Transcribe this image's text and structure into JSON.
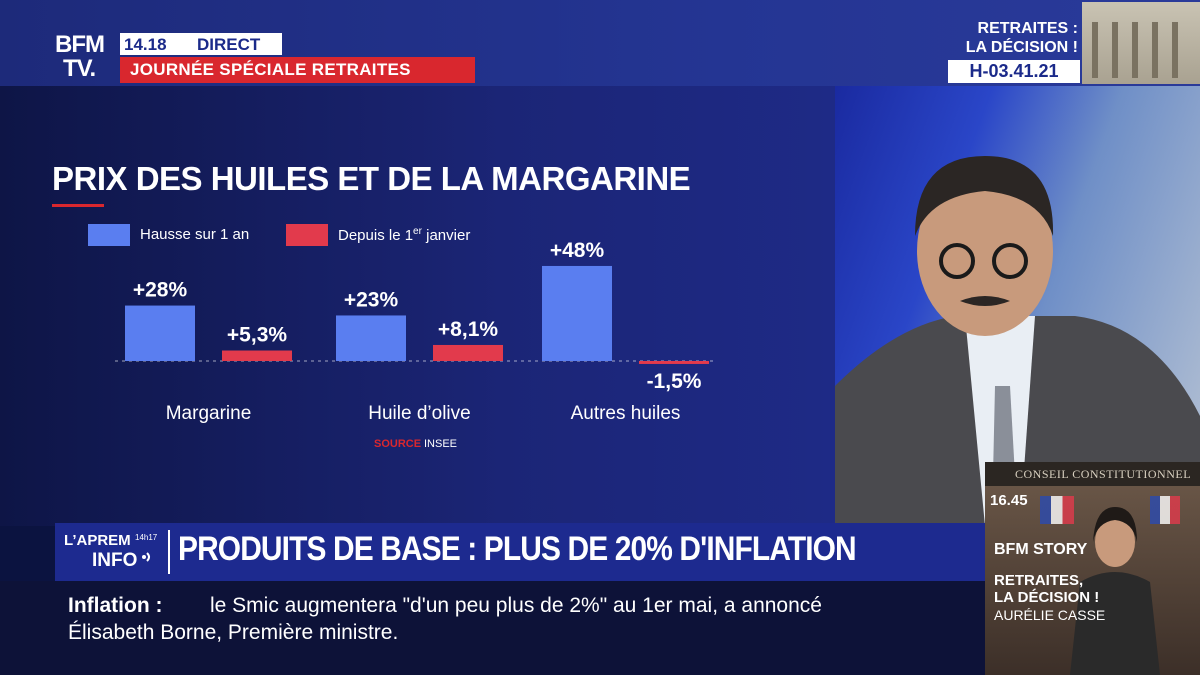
{
  "channel": {
    "logo_line1": "BFM",
    "logo_line2": "TV.",
    "time": "14.18",
    "live_label": "DIRECT",
    "special": "JOURNÉE SPÉCIALE RETRAITES"
  },
  "countdown": {
    "title_line1": "RETRAITES :",
    "title_line2": "LA DÉCISION !",
    "value": "H-03.41.21"
  },
  "chart_data": {
    "type": "bar",
    "title": "PRIX DES HUILES ET DE LA MARGARINE",
    "categories": [
      "Margarine",
      "Huile d’olive",
      "Autres huiles"
    ],
    "series": [
      {
        "name": "Hausse sur 1 an",
        "values": [
          28,
          23,
          48
        ],
        "labels": [
          "+28%",
          "+23%",
          "+48%"
        ],
        "color": "#5a7ef0"
      },
      {
        "name": "Depuis le 1er janvier",
        "values": [
          5.3,
          8.1,
          -1.5
        ],
        "labels": [
          "+5,3%",
          "+8,1%",
          "-1,5%"
        ],
        "color": "#e23a4c"
      }
    ],
    "legend": {
      "series1": "Hausse sur 1 an",
      "series2_prefix": "Depuis le 1",
      "series2_sup": "er",
      "series2_suffix": " janvier"
    },
    "source_prefix": "SOURCE",
    "source": "INSEE",
    "legend_position": "top-left",
    "grid": false,
    "ylim": [
      -2,
      50
    ]
  },
  "lower_third": {
    "show_name": "L’APREM",
    "show_time": "14h17",
    "show_sub": "INFO",
    "headline": "PRODUITS DE BASE : PLUS DE 20% D'INFLATION"
  },
  "ticker": {
    "label": "Inflation :",
    "line1": "le Smic augmentera \"d'un peu plus de 2%\" au 1er mai, a annoncé",
    "line2": "Élisabeth Borne, Première ministre."
  },
  "inset": {
    "header": "CONSEIL CONSTITUTIONNEL",
    "time": "16.45",
    "show": "BFM STORY",
    "title_line1": "RETRAITES,",
    "title_line2": "LA DÉCISION !",
    "presenter": "AURÉLIE CASSE"
  },
  "colors": {
    "brand_blue": "#1d2a8f",
    "accent_red": "#d9272e",
    "bar_blue": "#5a7ef0",
    "bar_red": "#e23a4c"
  }
}
